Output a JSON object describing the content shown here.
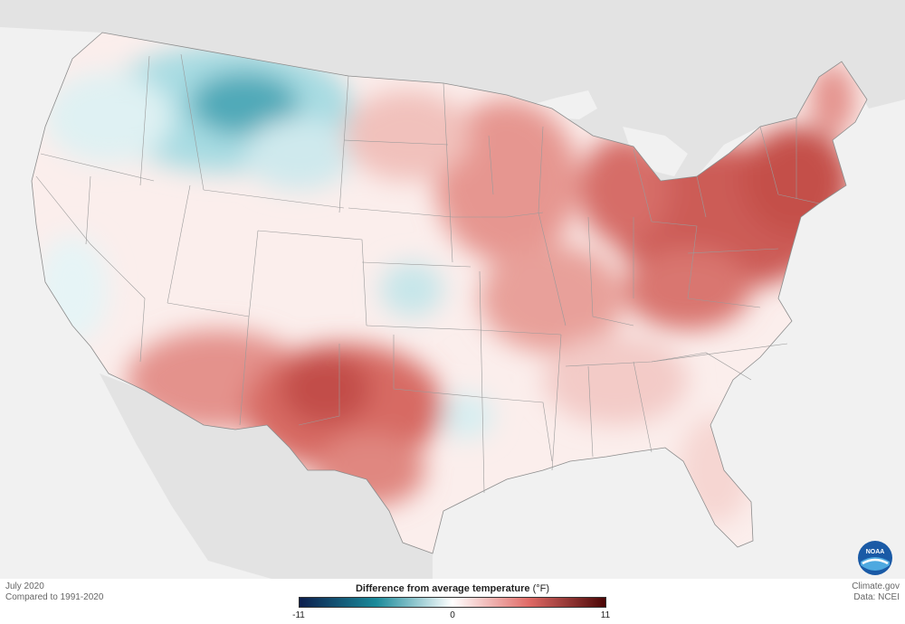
{
  "map": {
    "title": "July 2020",
    "subtitle": "Compared to 1991-2020",
    "credit_site": "Climate.gov",
    "credit_data": "Data: NCEI",
    "logo_text": "NOAA"
  },
  "legend": {
    "label": "Difference from average temperature",
    "unit": "(°F)",
    "ticks": [
      "-11",
      "0",
      "11"
    ],
    "min": -11,
    "max": 11,
    "colors": {
      "cold_end": "#0c1e4d",
      "cold_mid": "#1a8a9a",
      "neutral": "#ffffff",
      "warm_mid": "#e06a66",
      "warm_end": "#4a0505"
    }
  },
  "colors": {
    "land_background": "#e3e3e3",
    "water": "#f1f1f1",
    "us_neutral": "#fbeeec",
    "state_border": "#9a9a9a"
  }
}
